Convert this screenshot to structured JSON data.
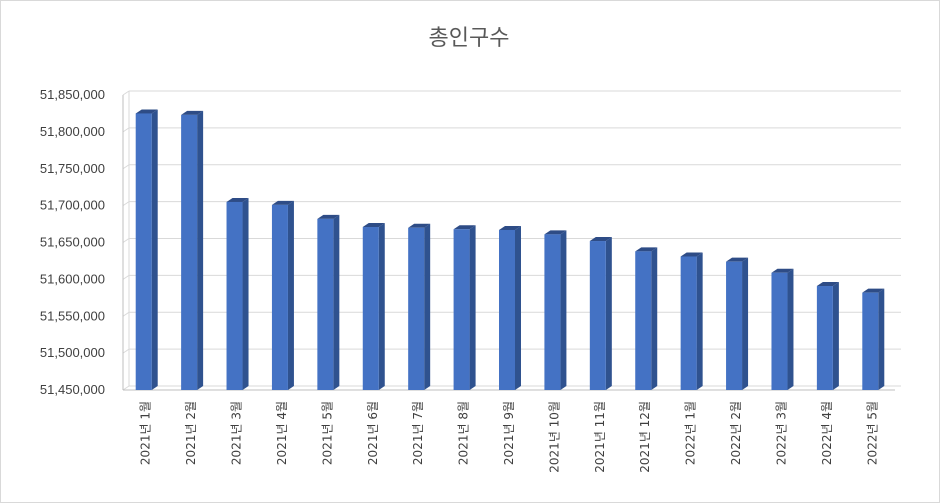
{
  "chart_data": {
    "type": "bar",
    "title": "총인구수",
    "categories": [
      "2021년 1월",
      "2021년 2월",
      "2021년 3월",
      "2021년 4월",
      "2021년 5월",
      "2021년 6월",
      "2021년 7월",
      "2021년 8월",
      "2021년 9월",
      "2021년 10월",
      "2021년 11월",
      "2021년 12월",
      "2022년 1월",
      "2022년 2월",
      "2022년 3월",
      "2022년 4월",
      "2022년 5월"
    ],
    "values": [
      51825000,
      51823000,
      51705000,
      51701000,
      51682000,
      51671000,
      51670000,
      51668000,
      51667000,
      51661000,
      51652000,
      51638000,
      51631000,
      51624000,
      51609000,
      51591000,
      51582000
    ],
    "yticks": [
      "51,450,000",
      "51,500,000",
      "51,550,000",
      "51,600,000",
      "51,650,000",
      "51,700,000",
      "51,750,000",
      "51,800,000",
      "51,850,000"
    ],
    "ylim": [
      51450000,
      51850000
    ],
    "grid": true,
    "style": "3d-column",
    "bar_color": "#4472c4",
    "bar_side_color": "#2f528f",
    "bar_top_color": "#2e4c86",
    "grid_color": "#d9d9d9",
    "axis_color": "#bfbfbf"
  }
}
